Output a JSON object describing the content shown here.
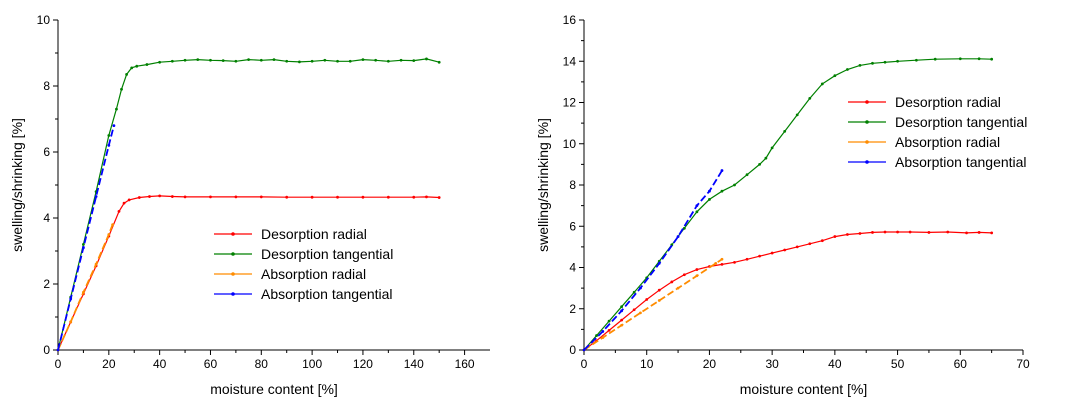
{
  "chart_data": [
    {
      "type": "line",
      "xlabel": "moisture content [%]",
      "ylabel": "swelling/shrinking [%]",
      "xlim": [
        0,
        170
      ],
      "ylim": [
        0,
        10
      ],
      "xticks": [
        0,
        20,
        40,
        60,
        80,
        100,
        120,
        140,
        160
      ],
      "yticks": [
        0,
        2,
        4,
        6,
        8,
        10
      ],
      "legend": "center-right",
      "series": [
        {
          "name": "Desorption radial",
          "color": "#ff0000",
          "x": [
            0,
            5,
            10,
            15,
            20,
            24,
            26,
            28,
            32,
            36,
            40,
            45,
            50,
            60,
            70,
            80,
            90,
            100,
            110,
            120,
            130,
            140,
            145,
            150
          ],
          "y": [
            0,
            0.85,
            1.7,
            2.55,
            3.45,
            4.2,
            4.45,
            4.55,
            4.62,
            4.65,
            4.67,
            4.65,
            4.64,
            4.64,
            4.64,
            4.64,
            4.63,
            4.63,
            4.63,
            4.63,
            4.63,
            4.63,
            4.64,
            4.62
          ]
        },
        {
          "name": "Desorption tangential",
          "color": "#008000",
          "x": [
            0,
            5,
            10,
            15,
            20,
            23,
            25,
            27,
            29,
            31,
            35,
            40,
            45,
            50,
            55,
            60,
            65,
            70,
            75,
            80,
            85,
            90,
            95,
            100,
            105,
            110,
            115,
            120,
            125,
            130,
            135,
            140,
            145,
            150
          ],
          "y": [
            0,
            1.6,
            3.2,
            4.8,
            6.5,
            7.3,
            7.9,
            8.35,
            8.55,
            8.6,
            8.65,
            8.72,
            8.75,
            8.78,
            8.8,
            8.78,
            8.77,
            8.75,
            8.8,
            8.78,
            8.8,
            8.75,
            8.73,
            8.75,
            8.78,
            8.75,
            8.75,
            8.8,
            8.78,
            8.75,
            8.78,
            8.77,
            8.82,
            8.72
          ]
        },
        {
          "name": "Absorption radial",
          "color": "#ff8c00",
          "x": [
            0,
            5,
            10,
            15,
            20,
            21.5
          ],
          "y": [
            0,
            0.85,
            1.75,
            2.6,
            3.5,
            3.8
          ]
        },
        {
          "name": "Absorption tangential",
          "color": "#0000ff",
          "x": [
            0,
            5,
            10,
            15,
            20,
            22
          ],
          "y": [
            0,
            1.55,
            3.1,
            4.65,
            6.2,
            6.8
          ]
        }
      ]
    },
    {
      "type": "line",
      "xlabel": "moisture content [%]",
      "ylabel": "swelling/shrinking [%]",
      "xlim": [
        0,
        70
      ],
      "ylim": [
        0,
        16
      ],
      "xticks": [
        0,
        10,
        20,
        30,
        40,
        50,
        60,
        70
      ],
      "yticks": [
        0,
        2,
        4,
        6,
        8,
        10,
        12,
        14,
        16
      ],
      "legend": "top-right",
      "series": [
        {
          "name": "Desorption radial",
          "color": "#ff0000",
          "x": [
            0,
            2,
            4,
            6,
            8,
            10,
            12,
            14,
            16,
            18,
            20,
            22,
            24,
            26,
            28,
            30,
            32,
            34,
            36,
            38,
            40,
            42,
            44,
            46,
            48,
            50,
            52,
            55,
            58,
            61,
            63,
            65
          ],
          "y": [
            0,
            0.45,
            0.95,
            1.45,
            1.95,
            2.45,
            2.9,
            3.3,
            3.65,
            3.9,
            4.05,
            4.15,
            4.25,
            4.4,
            4.55,
            4.7,
            4.85,
            5.0,
            5.15,
            5.3,
            5.5,
            5.6,
            5.65,
            5.7,
            5.72,
            5.72,
            5.72,
            5.7,
            5.72,
            5.68,
            5.7,
            5.68
          ]
        },
        {
          "name": "Desorption tangential",
          "color": "#008000",
          "x": [
            0,
            2,
            4,
            6,
            8,
            10,
            12,
            14,
            16,
            18,
            20,
            22,
            24,
            26,
            28,
            29,
            30,
            32,
            34,
            36,
            38,
            40,
            42,
            44,
            46,
            48,
            50,
            53,
            56,
            60,
            63,
            65
          ],
          "y": [
            0,
            0.7,
            1.4,
            2.1,
            2.8,
            3.5,
            4.3,
            5.1,
            5.9,
            6.7,
            7.3,
            7.7,
            8.0,
            8.5,
            9.0,
            9.3,
            9.8,
            10.6,
            11.4,
            12.2,
            12.9,
            13.3,
            13.6,
            13.8,
            13.9,
            13.95,
            14.0,
            14.05,
            14.1,
            14.12,
            14.12,
            14.1
          ]
        },
        {
          "name": "Absorption radial",
          "color": "#ff8c00",
          "x": [
            0,
            3,
            6,
            9,
            12,
            15,
            18,
            21,
            22
          ],
          "y": [
            0,
            0.6,
            1.2,
            1.8,
            2.4,
            3.0,
            3.6,
            4.2,
            4.4
          ]
        },
        {
          "name": "Absorption tangential",
          "color": "#0000ff",
          "x": [
            0,
            3,
            6,
            9,
            12,
            15,
            18,
            20,
            22
          ],
          "y": [
            0,
            0.9,
            1.9,
            3.0,
            4.2,
            5.5,
            7.0,
            7.7,
            8.7
          ]
        }
      ]
    }
  ]
}
